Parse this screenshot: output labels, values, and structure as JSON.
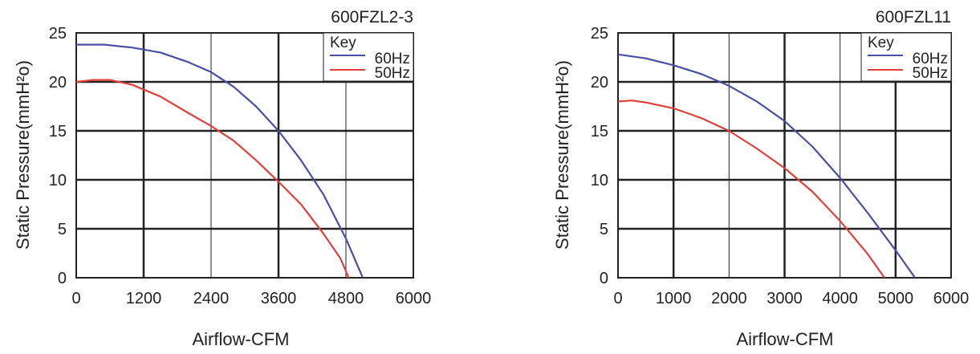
{
  "chart_data": [
    {
      "type": "line",
      "title": "600FZL2-3",
      "xlabel": "Airflow-CFM",
      "ylabel": "Static Pressure(mmH²o)",
      "xlim": [
        0,
        6000
      ],
      "ylim": [
        0,
        25
      ],
      "x_ticks": [
        0,
        1200,
        2400,
        3600,
        4800,
        6000
      ],
      "y_ticks": [
        0,
        5,
        10,
        15,
        20,
        25
      ],
      "grid": true,
      "legend": {
        "title": "Key",
        "placement": "top-right"
      },
      "series": [
        {
          "name": "60Hz",
          "color": "#4a4fa6",
          "points": [
            [
              0,
              23.8
            ],
            [
              500,
              23.8
            ],
            [
              1000,
              23.5
            ],
            [
              1500,
              23.0
            ],
            [
              2000,
              22.0
            ],
            [
              2400,
              21.0
            ],
            [
              2800,
              19.5
            ],
            [
              3200,
              17.5
            ],
            [
              3600,
              15.0
            ],
            [
              4000,
              12.0
            ],
            [
              4400,
              8.5
            ],
            [
              4800,
              4.0
            ],
            [
              5100,
              0
            ]
          ]
        },
        {
          "name": "50Hz",
          "color": "#e0403a",
          "points": [
            [
              0,
              20.0
            ],
            [
              300,
              20.2
            ],
            [
              600,
              20.2
            ],
            [
              1000,
              19.7
            ],
            [
              1500,
              18.5
            ],
            [
              2000,
              16.8
            ],
            [
              2400,
              15.5
            ],
            [
              2800,
              14.0
            ],
            [
              3200,
              12.0
            ],
            [
              3600,
              9.8
            ],
            [
              4000,
              7.5
            ],
            [
              4400,
              4.5
            ],
            [
              4700,
              2.0
            ],
            [
              4850,
              0
            ]
          ]
        }
      ]
    },
    {
      "type": "line",
      "title": "600FZL11",
      "xlabel": "Airflow-CFM",
      "ylabel": "Static Pressure(mmH²o)",
      "xlim": [
        0,
        6000
      ],
      "ylim": [
        0,
        25
      ],
      "x_ticks": [
        0,
        1000,
        2000,
        3000,
        4000,
        5000,
        6000
      ],
      "y_ticks": [
        0,
        5,
        10,
        15,
        20,
        25
      ],
      "grid": true,
      "legend": {
        "title": "Key",
        "placement": "top-right"
      },
      "series": [
        {
          "name": "60Hz",
          "color": "#4a4fa6",
          "points": [
            [
              0,
              22.8
            ],
            [
              500,
              22.4
            ],
            [
              1000,
              21.7
            ],
            [
              1500,
              20.8
            ],
            [
              2000,
              19.6
            ],
            [
              2500,
              18.0
            ],
            [
              3000,
              16.0
            ],
            [
              3500,
              13.4
            ],
            [
              4000,
              10.2
            ],
            [
              4500,
              6.6
            ],
            [
              5000,
              2.8
            ],
            [
              5350,
              0
            ]
          ]
        },
        {
          "name": "50Hz",
          "color": "#e0403a",
          "points": [
            [
              0,
              18.0
            ],
            [
              250,
              18.1
            ],
            [
              500,
              17.9
            ],
            [
              1000,
              17.3
            ],
            [
              1500,
              16.3
            ],
            [
              2000,
              15.0
            ],
            [
              2500,
              13.2
            ],
            [
              3000,
              11.2
            ],
            [
              3500,
              8.8
            ],
            [
              4000,
              5.8
            ],
            [
              4500,
              2.4
            ],
            [
              4800,
              0
            ]
          ]
        }
      ]
    }
  ]
}
